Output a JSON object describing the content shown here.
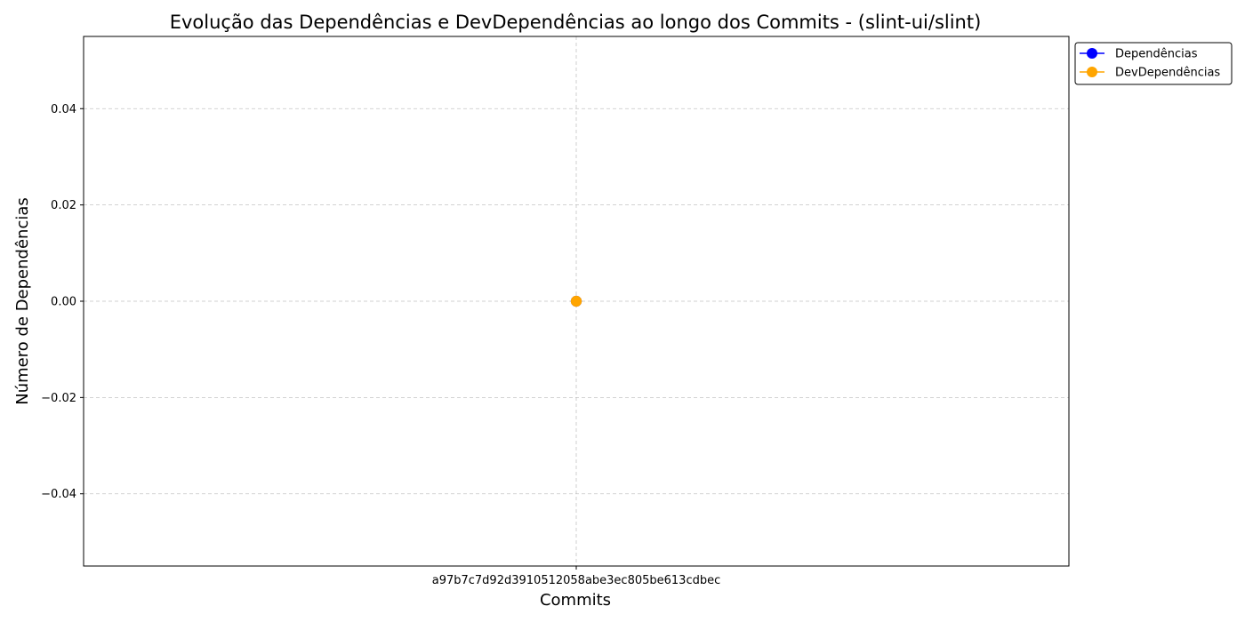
{
  "chart_data": {
    "type": "line",
    "title": "Evolução das Dependências e DevDependências ao longo dos Commits - (slint-ui/slint)",
    "xlabel": "Commits",
    "ylabel": "Número de Dependências",
    "categories": [
      "a97b7c7d92d3910512058abe3ec805be613cdbec"
    ],
    "series": [
      {
        "name": "Dependências",
        "values": [
          0
        ],
        "color": "#0000ff",
        "marker": "circle"
      },
      {
        "name": "DevDependências",
        "values": [
          0
        ],
        "color": "#ffa500",
        "marker": "circle"
      }
    ],
    "ylim": [
      -0.055,
      0.055
    ],
    "yticks": [
      -0.04,
      -0.02,
      0.0,
      0.02,
      0.04
    ],
    "ytick_labels": [
      "−0.04",
      "−0.02",
      "0.00",
      "0.02",
      "0.04"
    ],
    "grid": true,
    "legend_position": "upper-left-outside-right"
  }
}
